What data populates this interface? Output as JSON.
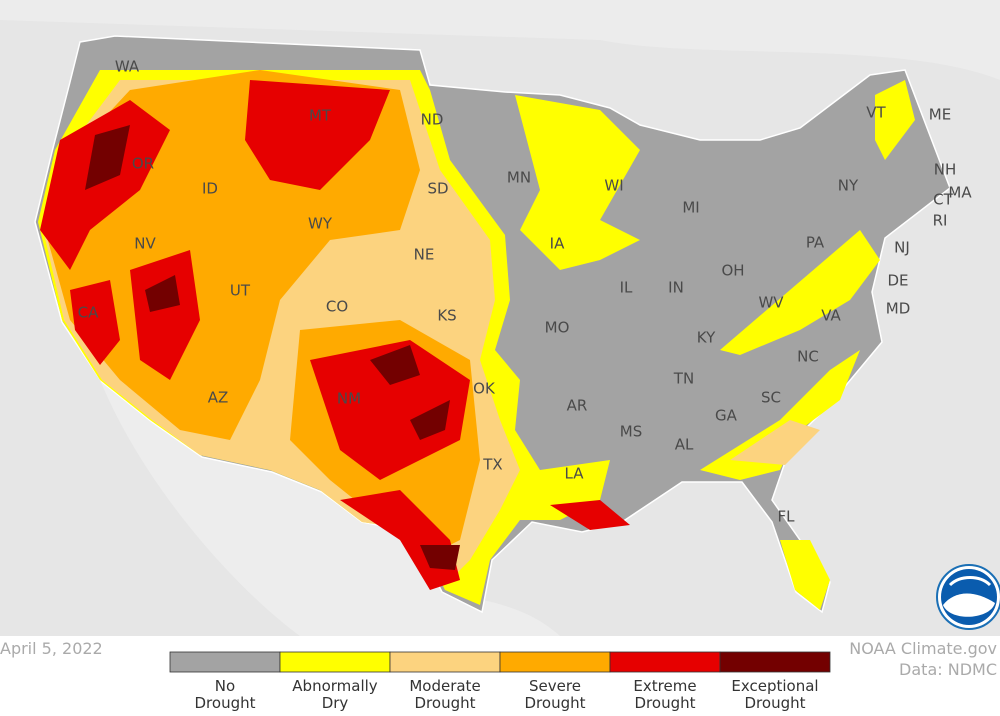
{
  "title": "April 5, 2022",
  "credit": {
    "source": "NOAA Climate.gov",
    "data": "Data: NDMC"
  },
  "states": [
    "WA",
    "OR",
    "CA",
    "NV",
    "ID",
    "MT",
    "WY",
    "UT",
    "AZ",
    "CO",
    "NM",
    "ND",
    "SD",
    "NE",
    "KS",
    "OK",
    "TX",
    "MN",
    "IA",
    "MO",
    "AR",
    "LA",
    "WI",
    "IL",
    "MI",
    "IN",
    "KY",
    "TN",
    "MS",
    "AL",
    "GA",
    "FL",
    "SC",
    "NC",
    "VA",
    "WV",
    "OH",
    "PA",
    "NY",
    "VT",
    "ME",
    "NH",
    "MA",
    "RI",
    "CT",
    "NJ",
    "DE",
    "MD"
  ],
  "legend": [
    {
      "label": [
        "No",
        "Drought"
      ],
      "color": "#a3a3a3"
    },
    {
      "label": [
        "Abnormally",
        "Dry"
      ],
      "color": "#ffff00"
    },
    {
      "label": [
        "Moderate",
        "Drought"
      ],
      "color": "#fcd37f"
    },
    {
      "label": [
        "Severe",
        "Drought"
      ],
      "color": "#ffaa00"
    },
    {
      "label": [
        "Extreme",
        "Drought"
      ],
      "color": "#e60000"
    },
    {
      "label": [
        "Exceptional",
        "Drought"
      ],
      "color": "#730000"
    }
  ]
}
